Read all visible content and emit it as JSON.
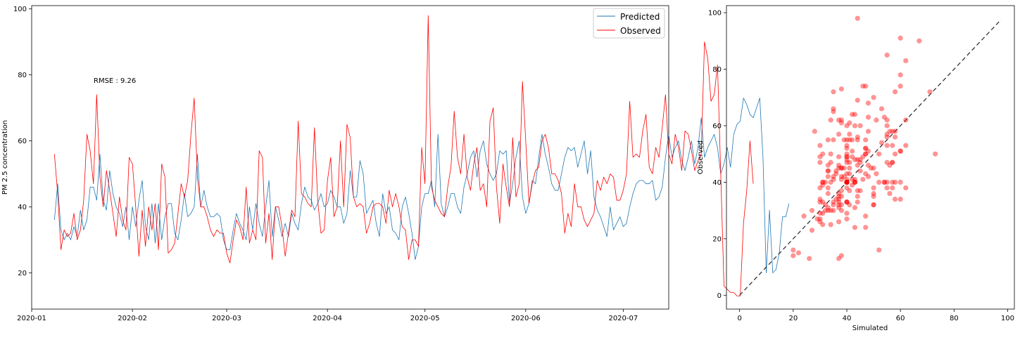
{
  "chart_data": [
    {
      "type": "line",
      "ylabel": "PM 2.5 concentration",
      "xlabel": "",
      "ylim": [
        9,
        101
      ],
      "xlim": [
        "2020-01-01",
        "2020-07-15"
      ],
      "yticks": [
        20,
        40,
        60,
        80,
        100
      ],
      "xticks": [
        "2020-01",
        "2020-02",
        "2020-03",
        "2020-04",
        "2020-05",
        "2020-06",
        "2020-07"
      ],
      "annotation": "RMSE : 9.26",
      "legend_position": "top-right",
      "start_date": "2020-01-08",
      "series": [
        {
          "name": "Predicted",
          "color": "#1f77b4",
          "values": [
            36,
            47,
            33,
            30,
            32,
            30,
            34,
            31,
            39,
            33,
            36,
            46,
            46,
            42,
            56,
            42,
            39,
            51,
            44,
            40,
            38,
            34,
            40,
            30,
            40,
            34,
            42,
            48,
            34,
            30,
            41,
            29,
            41,
            30,
            37,
            41,
            41,
            32,
            30,
            36,
            44,
            37,
            38,
            40,
            56,
            40,
            45,
            40,
            37,
            37,
            38,
            37,
            30,
            27,
            27,
            33,
            38,
            35,
            33,
            30,
            40,
            33,
            41,
            35,
            31,
            40,
            48,
            31,
            40,
            36,
            31,
            35,
            31,
            38,
            35,
            33,
            41,
            46,
            43,
            42,
            39,
            41,
            44,
            40,
            41,
            45,
            43,
            40,
            40,
            35,
            38,
            51,
            43,
            43,
            54,
            50,
            38,
            40,
            42,
            35,
            31,
            44,
            38,
            40,
            33,
            32,
            30,
            40,
            43,
            38,
            32,
            24,
            28,
            40,
            44,
            44,
            48,
            40,
            62,
            41,
            37,
            40,
            44,
            44,
            40,
            38,
            46,
            50,
            55,
            57,
            49,
            57,
            60,
            53,
            50,
            48,
            50,
            57,
            56,
            57,
            41,
            47,
            55,
            60,
            43,
            38,
            41,
            48,
            47,
            55,
            62,
            56,
            52,
            47,
            45,
            45,
            50,
            55,
            58,
            57,
            58,
            52,
            56,
            60,
            50,
            57,
            43,
            39,
            37,
            34,
            31,
            40,
            33,
            35,
            37,
            34,
            35,
            40,
            44,
            47,
            48,
            48,
            47,
            47,
            48,
            42,
            43,
            46,
            55,
            62,
            55,
            58,
            60,
            54,
            51,
            55,
            60,
            53,
            58,
            67,
            55,
            58,
            60,
            62,
            58,
            50,
            53,
            58,
            52,
            62,
            65,
            66,
            73,
            71,
            68,
            67,
            70,
            73,
            55,
            20,
            39,
            20,
            21,
            26,
            37,
            37,
            41
          ]
        },
        {
          "name": "Observed",
          "color": "#ff0000",
          "values": [
            56,
            44,
            27,
            33,
            31,
            32,
            38,
            30,
            33,
            42,
            62,
            57,
            47,
            74,
            49,
            40,
            51,
            45,
            38,
            31,
            43,
            36,
            33,
            55,
            53,
            40,
            25,
            39,
            28,
            40,
            33,
            41,
            27,
            53,
            49,
            26,
            27,
            29,
            38,
            47,
            43,
            48,
            62,
            73,
            49,
            40,
            40,
            37,
            33,
            31,
            33,
            32,
            32,
            26,
            23,
            30,
            36,
            34,
            30,
            46,
            29,
            33,
            30,
            57,
            55,
            29,
            38,
            24,
            40,
            40,
            34,
            25,
            32,
            39,
            37,
            66,
            44,
            43,
            41,
            40,
            64,
            42,
            32,
            33,
            48,
            55,
            37,
            40,
            60,
            40,
            65,
            61,
            43,
            40,
            41,
            40,
            32,
            35,
            40,
            41,
            41,
            40,
            35,
            45,
            40,
            44,
            40,
            34,
            33,
            24,
            30,
            30,
            28,
            58,
            47,
            98,
            46,
            42,
            40,
            38,
            37,
            46,
            52,
            69,
            55,
            50,
            62,
            49,
            45,
            53,
            58,
            45,
            47,
            40,
            66,
            70,
            46,
            35,
            53,
            46,
            40,
            61,
            43,
            47,
            78,
            60,
            41,
            47,
            51,
            52,
            60,
            62,
            58,
            50,
            50,
            48,
            44,
            32,
            38,
            34,
            47,
            40,
            40,
            36,
            34,
            36,
            38,
            48,
            45,
            49,
            47,
            50,
            49,
            42,
            42,
            45,
            50,
            72,
            55,
            56,
            55,
            63,
            68,
            52,
            50,
            58,
            55,
            64,
            74,
            56,
            53,
            62,
            58,
            51,
            63,
            62,
            57,
            51,
            54,
            56,
            90,
            85,
            72,
            74,
            83,
            50,
            16,
            15,
            14,
            14,
            13,
            13,
            35,
            45,
            60,
            47
          ]
        }
      ]
    },
    {
      "type": "scatter",
      "xlabel": "Simulated",
      "ylabel": "Observed",
      "xlim": [
        -4.9,
        102.5
      ],
      "ylim": [
        -4.9,
        102.5
      ],
      "xticks": [
        0,
        20,
        40,
        60,
        80,
        100
      ],
      "yticks": [
        0,
        20,
        40,
        60,
        80,
        100
      ],
      "point_color": "#ff0000",
      "reference_line": {
        "from": [
          0,
          0
        ],
        "to": [
          97.5,
          97.5
        ],
        "style": "dashed",
        "color": "#333333"
      },
      "points": [
        [
          33,
          55
        ],
        [
          36,
          44
        ],
        [
          30,
          27
        ],
        [
          33,
          31
        ],
        [
          32,
          32
        ],
        [
          30,
          38
        ],
        [
          35,
          30
        ],
        [
          31,
          33
        ],
        [
          38,
          42
        ],
        [
          34,
          62
        ],
        [
          37,
          57
        ],
        [
          45,
          47
        ],
        [
          47,
          74
        ],
        [
          42,
          49
        ],
        [
          55,
          40
        ],
        [
          42,
          51
        ],
        [
          38,
          45
        ],
        [
          50,
          38
        ],
        [
          43,
          31
        ],
        [
          40,
          43
        ],
        [
          37,
          36
        ],
        [
          35,
          33
        ],
        [
          39,
          55
        ],
        [
          30,
          53
        ],
        [
          40,
          40
        ],
        [
          34,
          25
        ],
        [
          42,
          39
        ],
        [
          47,
          28
        ],
        [
          34,
          40
        ],
        [
          30,
          33
        ],
        [
          40,
          41
        ],
        [
          29,
          27
        ],
        [
          40,
          53
        ],
        [
          30,
          49
        ],
        [
          37,
          26
        ],
        [
          40,
          27
        ],
        [
          40,
          29
        ],
        [
          33,
          38
        ],
        [
          30,
          47
        ],
        [
          36,
          43
        ],
        [
          44,
          48
        ],
        [
          37,
          62
        ],
        [
          38,
          73
        ],
        [
          40,
          49
        ],
        [
          54,
          40
        ],
        [
          40,
          40
        ],
        [
          44,
          37
        ],
        [
          40,
          33
        ],
        [
          37,
          31
        ],
        [
          37,
          33
        ],
        [
          38,
          32
        ],
        [
          37,
          32
        ],
        [
          30,
          26
        ],
        [
          27,
          23
        ],
        [
          27,
          30
        ],
        [
          33,
          36
        ],
        [
          37,
          34
        ],
        [
          34,
          30
        ],
        [
          33,
          46
        ],
        [
          30,
          29
        ],
        [
          40,
          33
        ],
        [
          33,
          30
        ],
        [
          41,
          57
        ],
        [
          35,
          55
        ],
        [
          31,
          29
        ],
        [
          40,
          38
        ],
        [
          47,
          24
        ],
        [
          31,
          40
        ],
        [
          40,
          40
        ],
        [
          36,
          34
        ],
        [
          31,
          25
        ],
        [
          35,
          32
        ],
        [
          31,
          39
        ],
        [
          38,
          37
        ],
        [
          35,
          66
        ],
        [
          33,
          44
        ],
        [
          41,
          43
        ],
        [
          46,
          41
        ],
        [
          43,
          40
        ],
        [
          42,
          64
        ],
        [
          39,
          42
        ],
        [
          41,
          32
        ],
        [
          44,
          33
        ],
        [
          40,
          48
        ],
        [
          41,
          55
        ],
        [
          45,
          37
        ],
        [
          43,
          40
        ],
        [
          40,
          60
        ],
        [
          40,
          40
        ],
        [
          35,
          65
        ],
        [
          38,
          61
        ],
        [
          51,
          43
        ],
        [
          43,
          40
        ],
        [
          43,
          41
        ],
        [
          54,
          40
        ],
        [
          50,
          32
        ],
        [
          38,
          35
        ],
        [
          40,
          40
        ],
        [
          42,
          41
        ],
        [
          35,
          41
        ],
        [
          31,
          40
        ],
        [
          44,
          35
        ],
        [
          38,
          45
        ],
        [
          40,
          40
        ],
        [
          33,
          44
        ],
        [
          32,
          40
        ],
        [
          30,
          34
        ],
        [
          40,
          33
        ],
        [
          43,
          24
        ],
        [
          38,
          30
        ],
        [
          32,
          30
        ],
        [
          24,
          28
        ],
        [
          28,
          58
        ],
        [
          40,
          47
        ],
        [
          44,
          98
        ],
        [
          44,
          46
        ],
        [
          48,
          42
        ],
        [
          40,
          40
        ],
        [
          62,
          38
        ],
        [
          41,
          37
        ],
        [
          37,
          46
        ],
        [
          40,
          52
        ],
        [
          44,
          69
        ],
        [
          44,
          55
        ],
        [
          40,
          50
        ],
        [
          38,
          62
        ],
        [
          46,
          49
        ],
        [
          50,
          45
        ],
        [
          55,
          53
        ],
        [
          57,
          58
        ],
        [
          49,
          45
        ],
        [
          57,
          47
        ],
        [
          60,
          40
        ],
        [
          53,
          66
        ],
        [
          50,
          70
        ],
        [
          48,
          46
        ],
        [
          50,
          35
        ],
        [
          57,
          53
        ],
        [
          56,
          46
        ],
        [
          57,
          40
        ],
        [
          41,
          61
        ],
        [
          47,
          43
        ],
        [
          55,
          47
        ],
        [
          60,
          78
        ],
        [
          43,
          60
        ],
        [
          38,
          41
        ],
        [
          41,
          47
        ],
        [
          48,
          51
        ],
        [
          47,
          52
        ],
        [
          55,
          60
        ],
        [
          62,
          62
        ],
        [
          56,
          58
        ],
        [
          52,
          50
        ],
        [
          47,
          50
        ],
        [
          45,
          48
        ],
        [
          45,
          44
        ],
        [
          50,
          32
        ],
        [
          55,
          38
        ],
        [
          58,
          34
        ],
        [
          57,
          47
        ],
        [
          58,
          40
        ],
        [
          52,
          40
        ],
        [
          56,
          36
        ],
        [
          60,
          34
        ],
        [
          50,
          36
        ],
        [
          57,
          38
        ],
        [
          43,
          48
        ],
        [
          39,
          45
        ],
        [
          37,
          49
        ],
        [
          34,
          47
        ],
        [
          31,
          50
        ],
        [
          40,
          49
        ],
        [
          33,
          42
        ],
        [
          35,
          42
        ],
        [
          37,
          45
        ],
        [
          34,
          50
        ],
        [
          35,
          72
        ],
        [
          40,
          55
        ],
        [
          44,
          56
        ],
        [
          47,
          55
        ],
        [
          48,
          63
        ],
        [
          48,
          68
        ],
        [
          47,
          52
        ],
        [
          47,
          50
        ],
        [
          48,
          58
        ],
        [
          42,
          55
        ],
        [
          43,
          64
        ],
        [
          46,
          74
        ],
        [
          55,
          56
        ],
        [
          62,
          53
        ],
        [
          55,
          62
        ],
        [
          58,
          58
        ],
        [
          60,
          51
        ],
        [
          54,
          63
        ],
        [
          51,
          62
        ],
        [
          55,
          57
        ],
        [
          60,
          51
        ],
        [
          53,
          54
        ],
        [
          58,
          56
        ],
        [
          67,
          90
        ],
        [
          55,
          85
        ],
        [
          58,
          72
        ],
        [
          60,
          74
        ],
        [
          62,
          83
        ],
        [
          58,
          50
        ],
        [
          20,
          16
        ],
        [
          22,
          15
        ],
        [
          20,
          14
        ],
        [
          26,
          13
        ],
        [
          37,
          13
        ],
        [
          37,
          35
        ],
        [
          41,
          45
        ],
        [
          45,
          60
        ],
        [
          73,
          50
        ],
        [
          71,
          72
        ],
        [
          60,
          91
        ],
        [
          52,
          16
        ],
        [
          38,
          14
        ]
      ]
    }
  ]
}
